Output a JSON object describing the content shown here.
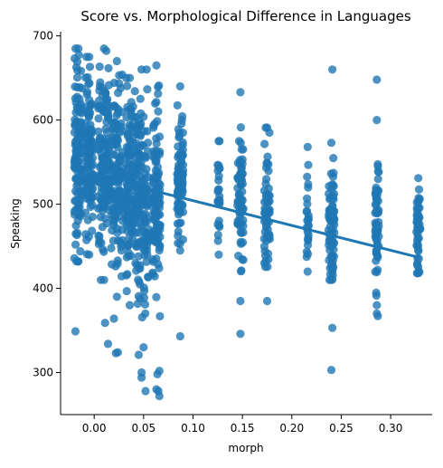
{
  "chart_data": {
    "type": "scatter",
    "title": "Score vs. Morphological Difference in Languages",
    "xlabel": "morph",
    "ylabel": "Speaking",
    "xlim": [
      -0.034,
      0.342
    ],
    "ylim": [
      250,
      705
    ],
    "xticks": [
      "0.00",
      "0.05",
      "0.10",
      "0.15",
      "0.20",
      "0.25",
      "0.30"
    ],
    "xtick_values": [
      0.0,
      0.05,
      0.1,
      0.15,
      0.2,
      0.25,
      0.3
    ],
    "yticks": [
      "300",
      "400",
      "500",
      "600",
      "700"
    ],
    "ytick_values": [
      300,
      400,
      500,
      600,
      700
    ],
    "grid": false,
    "legend": "none",
    "colors": {
      "points": "#1f77b4",
      "regression": "#1f77b4"
    },
    "regression": {
      "x": [
        0.05,
        0.328
      ],
      "y": [
        519,
        437
      ]
    },
    "clusters": [
      {
        "x": -0.016,
        "spread": 0.004,
        "count": 130,
        "ymin": 432,
        "ymax": 685,
        "mean": 560,
        "sd": 50
      },
      {
        "x": -0.005,
        "spread": 0.004,
        "count": 120,
        "ymin": 440,
        "ymax": 675,
        "mean": 555,
        "sd": 45
      },
      {
        "x": 0.01,
        "spread": 0.006,
        "count": 140,
        "ymin": 410,
        "ymax": 685,
        "mean": 545,
        "sd": 55
      },
      {
        "x": 0.023,
        "spread": 0.006,
        "count": 130,
        "ymin": 390,
        "ymax": 670,
        "mean": 540,
        "sd": 55
      },
      {
        "x": 0.036,
        "spread": 0.004,
        "count": 110,
        "ymin": 380,
        "ymax": 650,
        "mean": 520,
        "sd": 55
      },
      {
        "x": 0.048,
        "spread": 0.007,
        "count": 170,
        "ymin": 300,
        "ymax": 660,
        "mean": 510,
        "sd": 60
      },
      {
        "x": 0.063,
        "spread": 0.004,
        "count": 120,
        "ymin": 280,
        "ymax": 665,
        "mean": 505,
        "sd": 60
      },
      {
        "x": 0.087,
        "spread": 0.003,
        "count": 90,
        "ymin": 445,
        "ymax": 640,
        "mean": 530,
        "sd": 35
      },
      {
        "x": 0.126,
        "spread": 0.001,
        "count": 25,
        "ymin": 440,
        "ymax": 575,
        "mean": 505,
        "sd": 30
      },
      {
        "x": 0.148,
        "spread": 0.003,
        "count": 70,
        "ymin": 385,
        "ymax": 633,
        "mean": 505,
        "sd": 40
      },
      {
        "x": 0.175,
        "spread": 0.003,
        "count": 60,
        "ymin": 385,
        "ymax": 591,
        "mean": 490,
        "sd": 35
      },
      {
        "x": 0.216,
        "spread": 0.001,
        "count": 25,
        "ymin": 420,
        "ymax": 568,
        "mean": 480,
        "sd": 30
      },
      {
        "x": 0.24,
        "spread": 0.003,
        "count": 80,
        "ymin": 410,
        "ymax": 573,
        "mean": 480,
        "sd": 35
      },
      {
        "x": 0.286,
        "spread": 0.002,
        "count": 55,
        "ymin": 380,
        "ymax": 600,
        "mean": 475,
        "sd": 35
      },
      {
        "x": 0.328,
        "spread": 0.002,
        "count": 45,
        "ymin": 418,
        "ymax": 531,
        "mean": 470,
        "sd": 25
      }
    ],
    "outliers": [
      {
        "x": -0.019,
        "y": 349
      },
      {
        "x": 0.011,
        "y": 359
      },
      {
        "x": 0.014,
        "y": 334
      },
      {
        "x": 0.02,
        "y": 364
      },
      {
        "x": 0.022,
        "y": 323
      },
      {
        "x": 0.024,
        "y": 324
      },
      {
        "x": 0.045,
        "y": 321
      },
      {
        "x": 0.05,
        "y": 330
      },
      {
        "x": 0.048,
        "y": 294
      },
      {
        "x": 0.052,
        "y": 278
      },
      {
        "x": 0.066,
        "y": 302
      },
      {
        "x": 0.064,
        "y": 298
      },
      {
        "x": 0.066,
        "y": 272
      },
      {
        "x": 0.065,
        "y": 278
      },
      {
        "x": 0.087,
        "y": 343
      },
      {
        "x": 0.148,
        "y": 346
      },
      {
        "x": 0.241,
        "y": 660
      },
      {
        "x": 0.24,
        "y": 303
      },
      {
        "x": 0.241,
        "y": 353
      },
      {
        "x": 0.286,
        "y": 648
      },
      {
        "x": 0.287,
        "y": 367
      },
      {
        "x": 0.286,
        "y": 370
      }
    ]
  }
}
